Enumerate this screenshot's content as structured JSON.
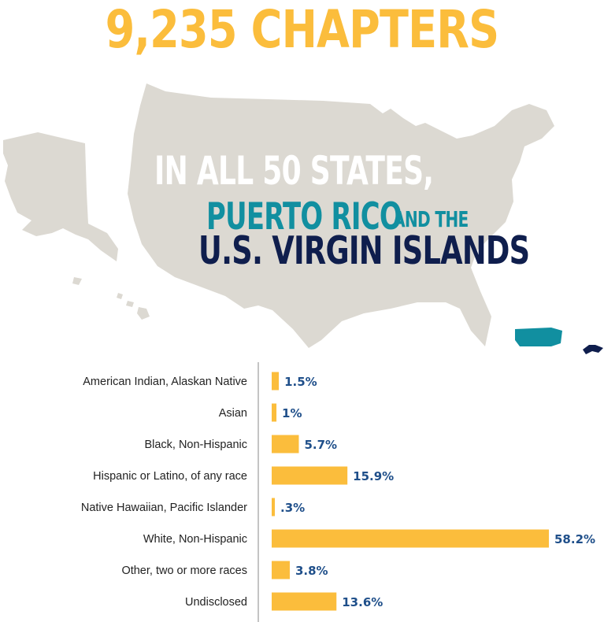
{
  "headline": "9,235 CHAPTERS",
  "map_text": {
    "line1": "IN ALL 50 STATES,",
    "line2_highlight": "PUERTO RICO",
    "line2_rest": "AND THE",
    "line3": "U.S. VIRGIN ISLANDS"
  },
  "colors": {
    "gold": "#FBBD3C",
    "teal": "#118FA0",
    "navy": "#0F1E4D",
    "blue_label": "#1F4F8A",
    "map_gray": "#DCD9D2",
    "axis": "#888888"
  },
  "chart_data": {
    "type": "bar",
    "orientation": "horizontal",
    "categories": [
      "American Indian, Alaskan Native",
      "Asian",
      "Black, Non-Hispanic",
      "Hispanic or Latino, of any race",
      "Native Hawaiian, Pacific Islander",
      "White, Non-Hispanic",
      "Other, two or more races",
      "Undisclosed"
    ],
    "values": [
      1.5,
      1,
      5.7,
      15.9,
      0.3,
      58.2,
      3.8,
      13.6
    ],
    "value_labels": [
      "1.5%",
      "1%",
      "5.7%",
      "15.9%",
      ".3%",
      "58.2%",
      "3.8%",
      "13.6%"
    ],
    "grid": false,
    "legend": "none"
  }
}
